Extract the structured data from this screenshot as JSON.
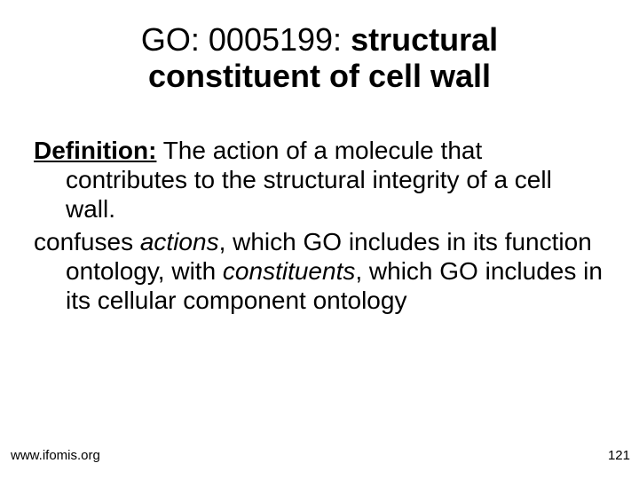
{
  "title": {
    "prefix": "GO: 0005199: ",
    "bold": "structural constituent of cell wall"
  },
  "body": {
    "def_label": "Definition:",
    "def_text": " The action of a molecule that contributes to the structural integrity of a cell wall.",
    "p2_a": "confuses ",
    "p2_i1": "actions",
    "p2_b": ", which GO includes in its function ontology, with ",
    "p2_i2": "constituents",
    "p2_c": ", which GO includes in its cellular component ontology"
  },
  "footer": {
    "url": "www.ifomis.org",
    "page": "121"
  },
  "style": {
    "bg": "#ffffff",
    "text": "#000000",
    "title_fontsize": 36,
    "body_fontsize": 28,
    "footer_fontsize": 15
  }
}
